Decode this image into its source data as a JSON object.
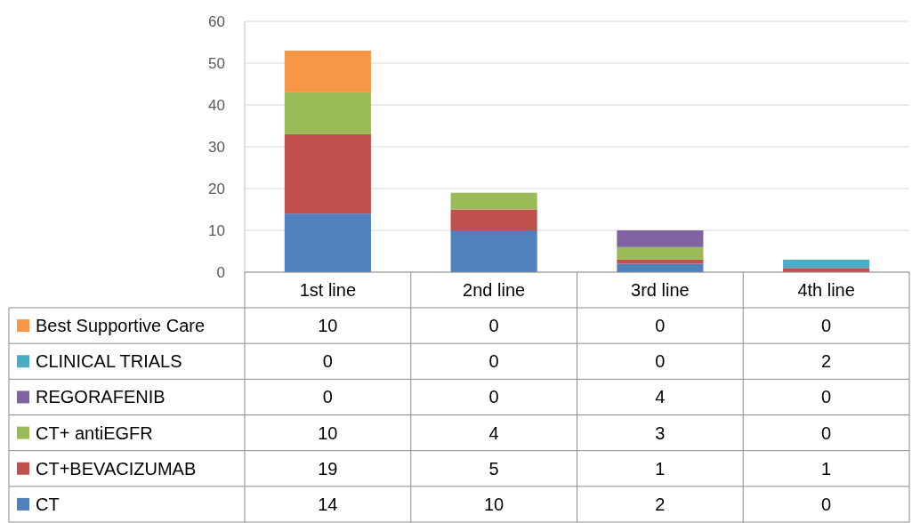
{
  "chart_data": {
    "type": "bar",
    "stacked": true,
    "categories": [
      "1st line",
      "2nd line",
      "3rd line",
      "4th line"
    ],
    "series": [
      {
        "name": "CT",
        "color": "#4f81bd",
        "values": [
          14,
          10,
          2,
          0
        ]
      },
      {
        "name": "CT+BEVACIZUMAB",
        "color": "#c0504d",
        "values": [
          19,
          5,
          1,
          1
        ]
      },
      {
        "name": "CT+ antiEGFR",
        "color": "#9bbb59",
        "values": [
          10,
          4,
          3,
          0
        ]
      },
      {
        "name": "REGORAFENIB",
        "color": "#8064a2",
        "values": [
          0,
          0,
          4,
          0
        ]
      },
      {
        "name": "CLINICAL TRIALS",
        "color": "#4bacc6",
        "values": [
          0,
          0,
          0,
          2
        ]
      },
      {
        "name": "Best Supportive Care",
        "color": "#f79646",
        "values": [
          10,
          0,
          0,
          0
        ]
      }
    ],
    "ylim": [
      0,
      60
    ],
    "yticks": [
      0,
      10,
      20,
      30,
      40,
      50,
      60
    ],
    "grid": "y",
    "legend": "bottom",
    "data_labels": true
  }
}
